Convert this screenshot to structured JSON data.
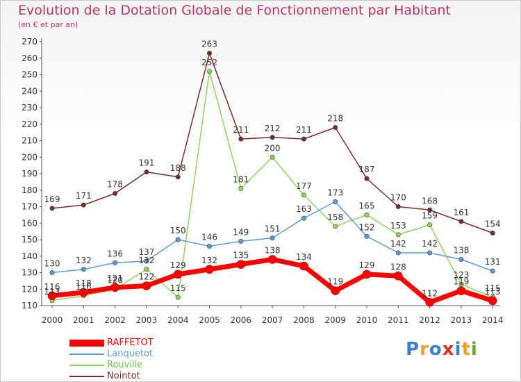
{
  "title": "Evolution de la Dotation Globale de Fonctionnement par Habitant",
  "subtitle": "(en € et par an)",
  "brand": {
    "text": "Proxiti",
    "letters": [
      {
        "ch": "P",
        "color": "#3a7fd0"
      },
      {
        "ch": "r",
        "color": "#f0a020"
      },
      {
        "ch": "o",
        "color": "#3a7fd0"
      },
      {
        "ch": "x",
        "color": "#e03020"
      },
      {
        "ch": "i",
        "color": "#3a7fd0"
      },
      {
        "ch": "t",
        "color": "#f0a020"
      },
      {
        "ch": "i",
        "color": "#60b030"
      }
    ]
  },
  "chart_data": {
    "type": "line",
    "title": "Evolution de la Dotation Globale de Fonctionnement par Habitant",
    "subtitle": "(en € et par an)",
    "x": [
      "2000",
      "2001",
      "2002",
      "2003",
      "2004",
      "2005",
      "2006",
      "2007",
      "2008",
      "2009",
      "2010",
      "2011",
      "2012",
      "2013",
      "2014"
    ],
    "ylim": [
      110,
      270
    ],
    "yticks": [
      110,
      120,
      130,
      140,
      150,
      160,
      170,
      180,
      190,
      200,
      210,
      220,
      230,
      240,
      250,
      260,
      270
    ],
    "grid": false,
    "legend": "bottom-left",
    "series": [
      {
        "name": "RAFFETOT",
        "color": "#ff0000",
        "values": [
          116,
          118,
          121,
          122,
          129,
          132,
          135,
          138,
          134,
          119,
          129,
          128,
          112,
          119,
          113
        ],
        "labels": [
          "116",
          "118",
          "121",
          "122",
          "129",
          "132",
          "135",
          "138",
          "134",
          "119",
          "129",
          "128",
          "112",
          "119",
          "113"
        ]
      },
      {
        "name": "Lanquetot",
        "color": "#5b9bd5",
        "values": [
          130,
          132,
          136,
          137,
          150,
          146,
          149,
          151,
          163,
          173,
          152,
          142,
          142,
          138,
          131
        ],
        "labels": [
          "130",
          "132",
          "136",
          "137",
          "150",
          "146",
          "149",
          "151",
          "163",
          "173",
          "152",
          "142",
          "142",
          "138",
          "131"
        ]
      },
      {
        "name": "Rouville",
        "color": "#8cd65a",
        "values": [
          113,
          116,
          120,
          132,
          115,
          252,
          181,
          200,
          177,
          158,
          165,
          153,
          159,
          123,
          115
        ],
        "labels": [
          "113",
          "116",
          "120",
          "132",
          "115",
          "252",
          "181",
          "200",
          "177",
          "158",
          "165",
          "153",
          "159",
          "123",
          "115"
        ]
      },
      {
        "name": "Nointot",
        "color": "#7a2a2a",
        "values": [
          169,
          171,
          178,
          191,
          188,
          263,
          211,
          212,
          211,
          218,
          187,
          170,
          168,
          161,
          154
        ],
        "labels": [
          "169",
          "171",
          "178",
          "191",
          "188",
          "263",
          "211",
          "212",
          "211",
          "218",
          "187",
          "170",
          "168",
          "161",
          "154"
        ]
      }
    ]
  }
}
